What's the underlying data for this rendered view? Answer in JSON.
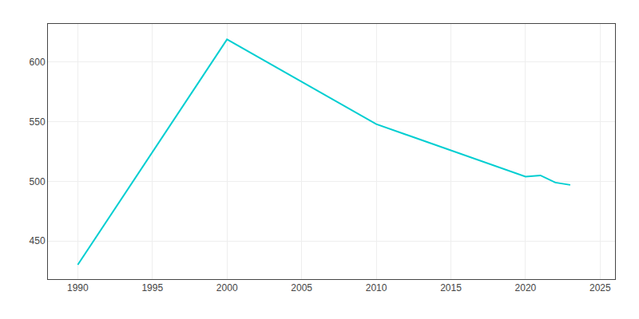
{
  "chart_data": {
    "type": "line",
    "x": [
      1990,
      2000,
      2010,
      2020,
      2021,
      2022,
      2023
    ],
    "values": [
      430,
      619,
      548,
      504,
      505,
      499,
      497
    ],
    "color": "#00CED1",
    "xlim": [
      1988,
      2026
    ],
    "ylim": [
      418,
      632
    ],
    "xticks": [
      1990,
      1995,
      2000,
      2005,
      2010,
      2015,
      2020,
      2025
    ],
    "yticks": [
      450,
      500,
      550,
      600
    ],
    "grid": true
  }
}
